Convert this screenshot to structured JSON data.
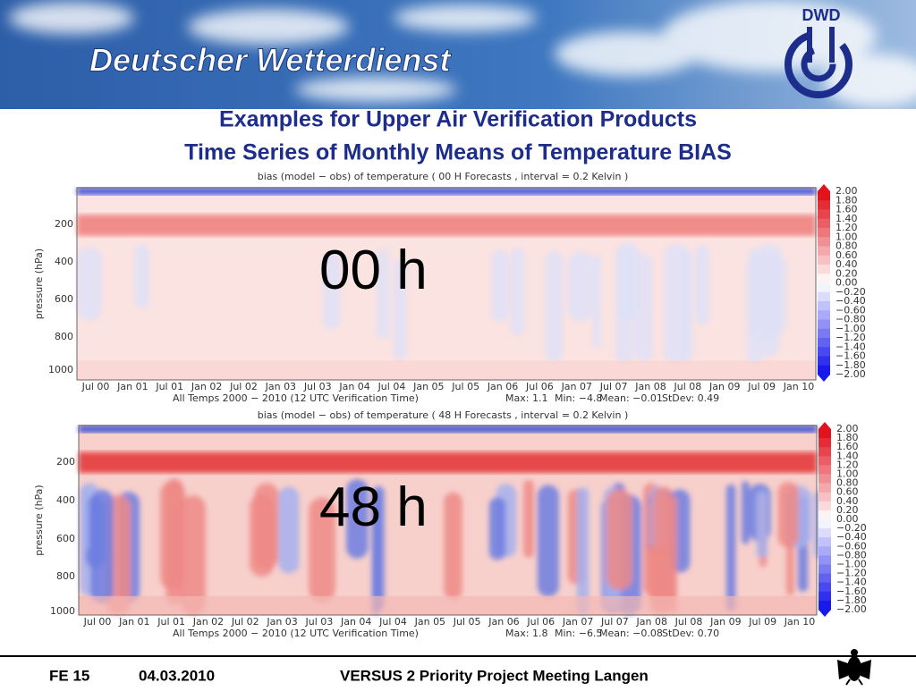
{
  "header": {
    "title": "Deutscher Wetterdienst",
    "logo": "DWD"
  },
  "slide": {
    "title_lines": [
      "Examples for Upper Air Verification Products",
      "Time Series of Monthly Means of Temperature BIAS"
    ]
  },
  "plots": [
    {
      "caption": "bias (model − obs) of temperature ( 00 H Forecasts   ,   interval = 0.2 Kelvin )",
      "label": "00 h",
      "y_axis_label": "pressure (hPa)",
      "y_ticks": [
        "200",
        "400",
        "600",
        "800",
        "1000"
      ],
      "x_ticks": [
        "Jul 00",
        "Jan 01",
        "Jul 01",
        "Jan 02",
        "Jul 02",
        "Jan 03",
        "Jul 03",
        "Jan 04",
        "Jul 04",
        "Jan 05",
        "Jul 05",
        "Jan 06",
        "Jul 06",
        "Jan 07",
        "Jul 07",
        "Jan 08",
        "Jul 08",
        "Jan 09",
        "Jul 09",
        "Jan 10"
      ],
      "note": "All Temps 2000 − 2010   (12 UTC Verification Time)",
      "stats": [
        "Max: 1.1",
        "Min: −4.8",
        "Mean: −0.01",
        "StDev: 0.49"
      ],
      "colorbar": [
        "2.00",
        "1.80",
        "1.60",
        "1.40",
        "1.20",
        "1.00",
        "0.80",
        "0.60",
        "0.40",
        "0.20",
        "0.00",
        "−0.20",
        "−0.40",
        "−0.60",
        "−0.80",
        "−1.00",
        "−1.20",
        "−1.40",
        "−1.60",
        "−1.80",
        "−2.00"
      ]
    },
    {
      "caption": "bias (model − obs) of temperature ( 48 H Forecasts   ,   interval = 0.2 Kelvin )",
      "label": "48 h",
      "y_axis_label": "pressure (hPa)",
      "y_ticks": [
        "200",
        "400",
        "600",
        "800",
        "1000"
      ],
      "x_ticks": [
        "Jul 00",
        "Jan 01",
        "Jul 01",
        "Jan 02",
        "Jul 02",
        "Jan 03",
        "Jul 03",
        "Jan 04",
        "Jul 04",
        "Jan 05",
        "Jul 05",
        "Jan 06",
        "Jul 06",
        "Jan 07",
        "Jul 07",
        "Jan 08",
        "Jul 08",
        "Jan 09",
        "Jul 09",
        "Jan 10"
      ],
      "note": "All Temps 2000 − 2010   (12 UTC Verification Time)",
      "stats": [
        "Max: 1.8",
        "Min: −6.5",
        "Mean: −0.08",
        "StDev: 0.70"
      ],
      "colorbar": [
        "2.00",
        "1.80",
        "1.60",
        "1.40",
        "1.20",
        "1.00",
        "0.80",
        "0.60",
        "0.40",
        "0.20",
        "0.00",
        "−0.20",
        "−0.40",
        "−0.60",
        "−0.80",
        "−1.00",
        "−1.20",
        "−1.40",
        "−1.60",
        "−1.80",
        "−2.00"
      ]
    }
  ],
  "footer": {
    "page": "FE 15",
    "date": "04.03.2010",
    "event": "VERSUS 2 Priority Project Meeting Langen"
  }
}
